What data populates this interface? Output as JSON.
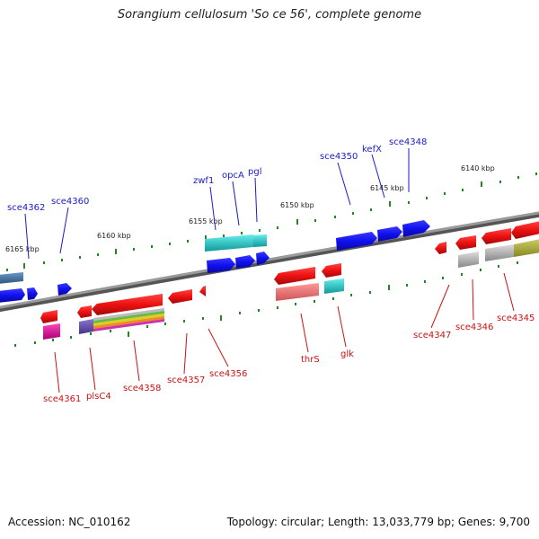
{
  "header": {
    "title": "Sorangium cellulosum 'So ce 56', complete genome"
  },
  "footer": {
    "accession": "Accession: NC_010162",
    "stats": "Topology: circular; Length: 13,033,779 bp; Genes: 9,700"
  },
  "scale_labels": [
    "6165 kbp",
    "6160 kbp",
    "6155 kbp",
    "6150 kbp",
    "6145 kbp",
    "6140 kbp"
  ],
  "forward_gene_labels": [
    "sce4362",
    "sce4360",
    "zwf1",
    "opcA",
    "pgl",
    "sce4350",
    "kefX",
    "sce4348"
  ],
  "reverse_gene_labels": [
    "sce4361",
    "plsC4",
    "sce4358",
    "sce4357",
    "sce4356",
    "thrS",
    "glk",
    "sce4347",
    "sce4346",
    "sce4345"
  ],
  "colors": {
    "forward_cds": "#1010ee",
    "reverse_cds": "#ee1111",
    "backbone": "#888888",
    "tick": "#228822",
    "cyan_track": "#22cccc",
    "grey_track": "#aaaaaa",
    "magenta_track": "#ee1199",
    "olive_track": "#aaaa33",
    "purple_track": "#6655aa",
    "steel_track": "#4477aa"
  }
}
